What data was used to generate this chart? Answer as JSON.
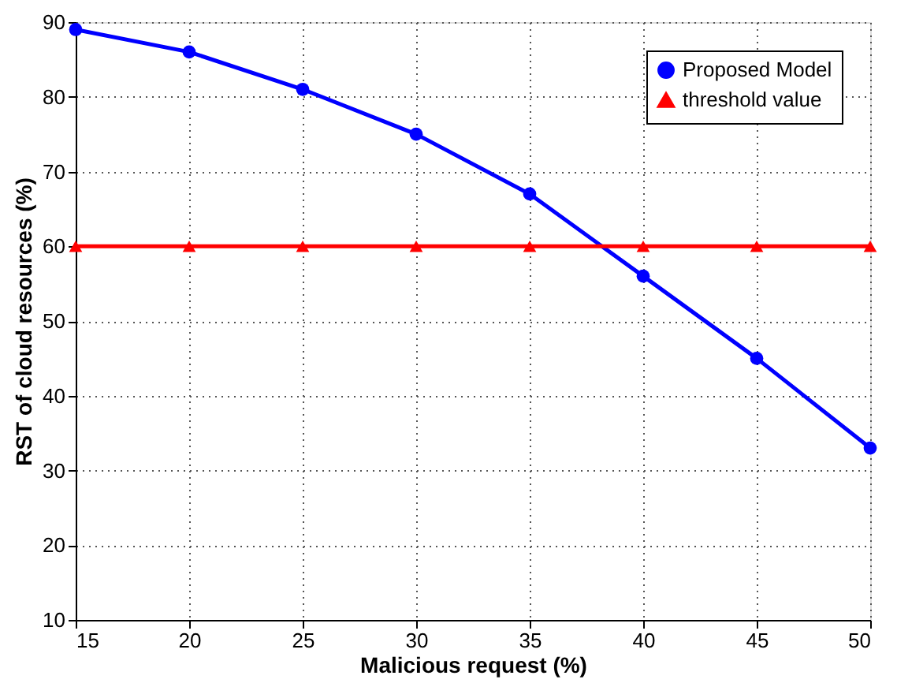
{
  "chart_data": {
    "type": "line",
    "xlabel": "Malicious request (%)",
    "ylabel": "RST of cloud resources (%)",
    "x": [
      15,
      20,
      25,
      30,
      35,
      40,
      45,
      50
    ],
    "series": [
      {
        "name": "Proposed Model",
        "color": "#0000ff",
        "marker": "circle",
        "values": [
          89,
          86,
          81,
          75,
          67,
          56,
          45,
          33
        ]
      },
      {
        "name": "threshold value",
        "color": "#ff0000",
        "marker": "triangle",
        "values": [
          60,
          60,
          60,
          60,
          60,
          60,
          60,
          60
        ]
      }
    ],
    "xlim": [
      15,
      50
    ],
    "xticks": [
      15,
      20,
      25,
      30,
      35,
      40,
      45,
      50
    ],
    "ylim": [
      10,
      90
    ],
    "yticks": [
      10,
      20,
      30,
      40,
      50,
      60,
      70,
      80,
      90
    ],
    "grid": true,
    "legend": "top right",
    "line_style": "solid"
  }
}
